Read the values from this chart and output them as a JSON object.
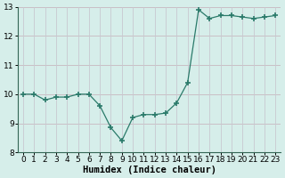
{
  "x": [
    0,
    1,
    2,
    3,
    4,
    5,
    6,
    7,
    8,
    9,
    10,
    11,
    12,
    13,
    14,
    15,
    16,
    17,
    18,
    19,
    20,
    21,
    22,
    23
  ],
  "y": [
    10.0,
    10.0,
    9.8,
    9.9,
    9.9,
    10.0,
    10.0,
    9.6,
    8.85,
    8.4,
    9.2,
    9.3,
    9.3,
    9.35,
    9.7,
    10.4,
    12.9,
    12.6,
    12.7,
    12.7,
    12.65,
    12.6,
    12.65,
    12.7
  ],
  "line_color": "#2a7a6a",
  "marker": "+",
  "marker_size": 4,
  "bg_color": "#d6eeea",
  "grid_color_h": "#c8b8c0",
  "grid_color_v": "#c8c8d0",
  "xlabel": "Humidex (Indice chaleur)",
  "xlim": [
    -0.5,
    23.5
  ],
  "ylim": [
    8,
    13
  ],
  "yticks": [
    8,
    9,
    10,
    11,
    12,
    13
  ],
  "xticks": [
    0,
    1,
    2,
    3,
    4,
    5,
    6,
    7,
    8,
    9,
    10,
    11,
    12,
    13,
    14,
    15,
    16,
    17,
    18,
    19,
    20,
    21,
    22,
    23
  ],
  "tick_fontsize": 6.5,
  "xlabel_fontsize": 7.5
}
